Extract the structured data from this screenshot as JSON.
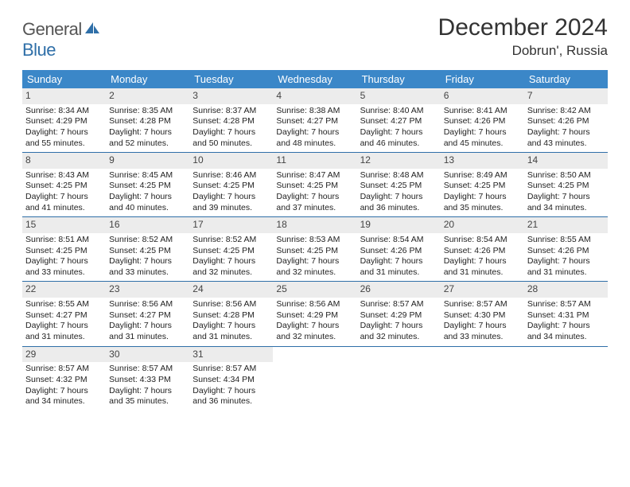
{
  "brand": {
    "word1": "General",
    "word2": "Blue"
  },
  "title": "December 2024",
  "location": "Dobrun', Russia",
  "weekdays": [
    "Sunday",
    "Monday",
    "Tuesday",
    "Wednesday",
    "Thursday",
    "Friday",
    "Saturday"
  ],
  "style": {
    "header_bg": "#3b87c8",
    "header_text": "#ffffff",
    "rule_color": "#2f6fa8",
    "daynum_bg": "#ececec",
    "body_font_size": 10.5,
    "title_font_size": 30,
    "location_font_size": 17,
    "weekday_font_size": 13
  },
  "days": [
    {
      "n": 1,
      "sunrise": "8:34 AM",
      "sunset": "4:29 PM",
      "daylight": "7 hours and 55 minutes."
    },
    {
      "n": 2,
      "sunrise": "8:35 AM",
      "sunset": "4:28 PM",
      "daylight": "7 hours and 52 minutes."
    },
    {
      "n": 3,
      "sunrise": "8:37 AM",
      "sunset": "4:28 PM",
      "daylight": "7 hours and 50 minutes."
    },
    {
      "n": 4,
      "sunrise": "8:38 AM",
      "sunset": "4:27 PM",
      "daylight": "7 hours and 48 minutes."
    },
    {
      "n": 5,
      "sunrise": "8:40 AM",
      "sunset": "4:27 PM",
      "daylight": "7 hours and 46 minutes."
    },
    {
      "n": 6,
      "sunrise": "8:41 AM",
      "sunset": "4:26 PM",
      "daylight": "7 hours and 45 minutes."
    },
    {
      "n": 7,
      "sunrise": "8:42 AM",
      "sunset": "4:26 PM",
      "daylight": "7 hours and 43 minutes."
    },
    {
      "n": 8,
      "sunrise": "8:43 AM",
      "sunset": "4:25 PM",
      "daylight": "7 hours and 41 minutes."
    },
    {
      "n": 9,
      "sunrise": "8:45 AM",
      "sunset": "4:25 PM",
      "daylight": "7 hours and 40 minutes."
    },
    {
      "n": 10,
      "sunrise": "8:46 AM",
      "sunset": "4:25 PM",
      "daylight": "7 hours and 39 minutes."
    },
    {
      "n": 11,
      "sunrise": "8:47 AM",
      "sunset": "4:25 PM",
      "daylight": "7 hours and 37 minutes."
    },
    {
      "n": 12,
      "sunrise": "8:48 AM",
      "sunset": "4:25 PM",
      "daylight": "7 hours and 36 minutes."
    },
    {
      "n": 13,
      "sunrise": "8:49 AM",
      "sunset": "4:25 PM",
      "daylight": "7 hours and 35 minutes."
    },
    {
      "n": 14,
      "sunrise": "8:50 AM",
      "sunset": "4:25 PM",
      "daylight": "7 hours and 34 minutes."
    },
    {
      "n": 15,
      "sunrise": "8:51 AM",
      "sunset": "4:25 PM",
      "daylight": "7 hours and 33 minutes."
    },
    {
      "n": 16,
      "sunrise": "8:52 AM",
      "sunset": "4:25 PM",
      "daylight": "7 hours and 33 minutes."
    },
    {
      "n": 17,
      "sunrise": "8:52 AM",
      "sunset": "4:25 PM",
      "daylight": "7 hours and 32 minutes."
    },
    {
      "n": 18,
      "sunrise": "8:53 AM",
      "sunset": "4:25 PM",
      "daylight": "7 hours and 32 minutes."
    },
    {
      "n": 19,
      "sunrise": "8:54 AM",
      "sunset": "4:26 PM",
      "daylight": "7 hours and 31 minutes."
    },
    {
      "n": 20,
      "sunrise": "8:54 AM",
      "sunset": "4:26 PM",
      "daylight": "7 hours and 31 minutes."
    },
    {
      "n": 21,
      "sunrise": "8:55 AM",
      "sunset": "4:26 PM",
      "daylight": "7 hours and 31 minutes."
    },
    {
      "n": 22,
      "sunrise": "8:55 AM",
      "sunset": "4:27 PM",
      "daylight": "7 hours and 31 minutes."
    },
    {
      "n": 23,
      "sunrise": "8:56 AM",
      "sunset": "4:27 PM",
      "daylight": "7 hours and 31 minutes."
    },
    {
      "n": 24,
      "sunrise": "8:56 AM",
      "sunset": "4:28 PM",
      "daylight": "7 hours and 31 minutes."
    },
    {
      "n": 25,
      "sunrise": "8:56 AM",
      "sunset": "4:29 PM",
      "daylight": "7 hours and 32 minutes."
    },
    {
      "n": 26,
      "sunrise": "8:57 AM",
      "sunset": "4:29 PM",
      "daylight": "7 hours and 32 minutes."
    },
    {
      "n": 27,
      "sunrise": "8:57 AM",
      "sunset": "4:30 PM",
      "daylight": "7 hours and 33 minutes."
    },
    {
      "n": 28,
      "sunrise": "8:57 AM",
      "sunset": "4:31 PM",
      "daylight": "7 hours and 34 minutes."
    },
    {
      "n": 29,
      "sunrise": "8:57 AM",
      "sunset": "4:32 PM",
      "daylight": "7 hours and 34 minutes."
    },
    {
      "n": 30,
      "sunrise": "8:57 AM",
      "sunset": "4:33 PM",
      "daylight": "7 hours and 35 minutes."
    },
    {
      "n": 31,
      "sunrise": "8:57 AM",
      "sunset": "4:34 PM",
      "daylight": "7 hours and 36 minutes."
    }
  ],
  "labels": {
    "sunrise": "Sunrise:",
    "sunset": "Sunset:",
    "daylight": "Daylight:"
  }
}
